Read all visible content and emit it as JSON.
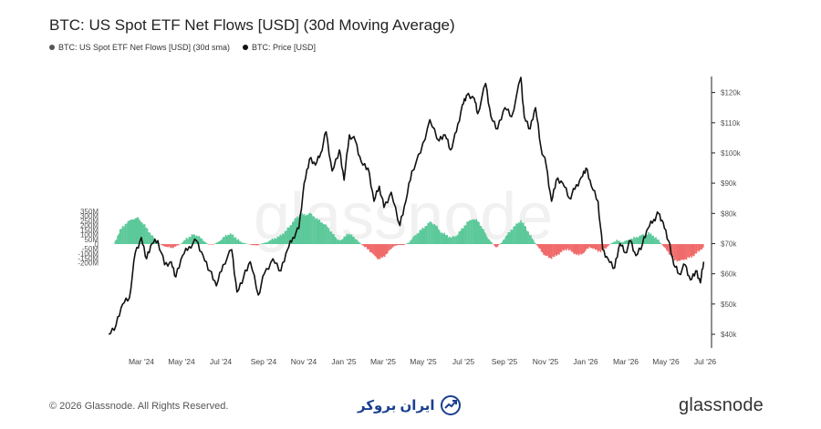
{
  "title": "BTC: US Spot ETF Net Flows [USD] (30d Moving Average)",
  "legend": [
    {
      "label": "BTC: US Spot ETF Net Flows [USD] (30d sma)",
      "color": "#555555"
    },
    {
      "label": "BTC: Price [USD]",
      "color": "#111111"
    }
  ],
  "watermark": "glassnode",
  "footer": {
    "copyright": "© 2026 Glassnode. All Rights Reserved.",
    "partner": "ایران بروکر",
    "brand": "glassnode"
  },
  "colors": {
    "inflow": "#5cc99a",
    "outflow": "#f06b6b",
    "price": "#111111"
  },
  "chart_data": {
    "type": "area",
    "title": "BTC: US Spot ETF Net Flows [USD] (30d Moving Average)",
    "x_ticks": [
      "Mar '24",
      "May '24",
      "Jul '24",
      "Sep '24",
      "Nov '24",
      "Jan '25",
      "Mar '25",
      "May '25",
      "Jul '25",
      "Sep '25",
      "Nov '25",
      "Jan '26",
      "Mar '26",
      "May '26",
      "Jul '26"
    ],
    "left_axis": {
      "ticks": [
        "350M",
        "300M",
        "250M",
        "200M",
        "150M",
        "100M",
        "50M",
        "0",
        "-50M",
        "-100M",
        "-150M",
        "-200M"
      ],
      "range": [
        -200,
        350
      ],
      "unit": "M USD"
    },
    "right_axis": {
      "ticks": [
        "$120k",
        "$110k",
        "$100k",
        "$90k",
        "$80k",
        "$70k",
        "$60k",
        "$50k",
        "$40k"
      ],
      "range": [
        40,
        125
      ],
      "unit": "k USD"
    },
    "series": [
      {
        "name": "BTC: US Spot ETF Net Flows [USD] (30d sma)",
        "axis": "left",
        "unit": "M USD",
        "points": [
          [
            "2024-02-01",
            0
          ],
          [
            "2024-02-10",
            150
          ],
          [
            "2024-02-20",
            230
          ],
          [
            "2024-02-28",
            265
          ],
          [
            "2024-03-08",
            280
          ],
          [
            "2024-03-18",
            200
          ],
          [
            "2024-03-28",
            100
          ],
          [
            "2024-04-05",
            30
          ],
          [
            "2024-04-12",
            -10
          ],
          [
            "2024-04-20",
            -30
          ],
          [
            "2024-04-28",
            -40
          ],
          [
            "2024-05-05",
            -20
          ],
          [
            "2024-05-12",
            5
          ],
          [
            "2024-05-20",
            60
          ],
          [
            "2024-05-30",
            100
          ],
          [
            "2024-06-06",
            90
          ],
          [
            "2024-06-14",
            40
          ],
          [
            "2024-06-22",
            -5
          ],
          [
            "2024-06-30",
            -5
          ],
          [
            "2024-07-08",
            30
          ],
          [
            "2024-07-18",
            90
          ],
          [
            "2024-07-25",
            110
          ],
          [
            "2024-08-02",
            70
          ],
          [
            "2024-08-10",
            20
          ],
          [
            "2024-08-18",
            5
          ],
          [
            "2024-08-26",
            -10
          ],
          [
            "2024-09-03",
            -15
          ],
          [
            "2024-09-10",
            5
          ],
          [
            "2024-09-18",
            20
          ],
          [
            "2024-09-28",
            60
          ],
          [
            "2024-10-06",
            80
          ],
          [
            "2024-10-15",
            130
          ],
          [
            "2024-10-23",
            200
          ],
          [
            "2024-11-01",
            280
          ],
          [
            "2024-11-08",
            320
          ],
          [
            "2024-11-15",
            310
          ],
          [
            "2024-11-22",
            330
          ],
          [
            "2024-11-30",
            280
          ],
          [
            "2024-12-08",
            240
          ],
          [
            "2024-12-16",
            200
          ],
          [
            "2024-12-24",
            130
          ],
          [
            "2024-12-31",
            60
          ],
          [
            "2025-01-08",
            40
          ],
          [
            "2025-01-16",
            110
          ],
          [
            "2025-01-25",
            90
          ],
          [
            "2025-02-02",
            30
          ],
          [
            "2025-02-10",
            -20
          ],
          [
            "2025-02-18",
            -60
          ],
          [
            "2025-02-26",
            -120
          ],
          [
            "2025-03-05",
            -160
          ],
          [
            "2025-03-12",
            -140
          ],
          [
            "2025-03-20",
            -80
          ],
          [
            "2025-03-28",
            -20
          ],
          [
            "2025-04-05",
            -10
          ],
          [
            "2025-04-12",
            -10
          ],
          [
            "2025-04-20",
            20
          ],
          [
            "2025-04-28",
            90
          ],
          [
            "2025-05-06",
            140
          ],
          [
            "2025-05-14",
            190
          ],
          [
            "2025-05-22",
            240
          ],
          [
            "2025-05-30",
            200
          ],
          [
            "2025-06-06",
            130
          ],
          [
            "2025-06-14",
            100
          ],
          [
            "2025-06-22",
            70
          ],
          [
            "2025-06-30",
            90
          ],
          [
            "2025-07-08",
            160
          ],
          [
            "2025-07-16",
            230
          ],
          [
            "2025-07-24",
            270
          ],
          [
            "2025-08-01",
            250
          ],
          [
            "2025-08-08",
            170
          ],
          [
            "2025-08-15",
            80
          ],
          [
            "2025-08-22",
            15
          ],
          [
            "2025-08-29",
            -35
          ],
          [
            "2025-09-05",
            10
          ],
          [
            "2025-09-12",
            80
          ],
          [
            "2025-09-20",
            150
          ],
          [
            "2025-09-28",
            210
          ],
          [
            "2025-10-05",
            250
          ],
          [
            "2025-10-12",
            180
          ],
          [
            "2025-10-20",
            80
          ],
          [
            "2025-10-27",
            5
          ],
          [
            "2025-11-03",
            -60
          ],
          [
            "2025-11-10",
            -120
          ],
          [
            "2025-11-18",
            -150
          ],
          [
            "2025-11-26",
            -130
          ],
          [
            "2025-12-05",
            -80
          ],
          [
            "2025-12-14",
            -50
          ],
          [
            "2025-12-22",
            -90
          ],
          [
            "2025-12-31",
            -120
          ],
          [
            "2026-01-08",
            -90
          ],
          [
            "2026-01-16",
            -30
          ],
          [
            "2026-01-25",
            -60
          ],
          [
            "2026-02-02",
            -80
          ],
          [
            "2026-02-10",
            -40
          ],
          [
            "2026-02-18",
            10
          ],
          [
            "2026-02-26",
            40
          ],
          [
            "2026-03-06",
            20
          ],
          [
            "2026-03-14",
            40
          ],
          [
            "2026-03-22",
            60
          ],
          [
            "2026-03-30",
            80
          ],
          [
            "2026-04-07",
            100
          ],
          [
            "2026-04-15",
            115
          ],
          [
            "2026-04-22",
            90
          ],
          [
            "2026-04-30",
            40
          ],
          [
            "2026-05-08",
            -30
          ],
          [
            "2026-05-16",
            -100
          ],
          [
            "2026-05-24",
            -170
          ],
          [
            "2026-06-01",
            -180
          ],
          [
            "2026-06-09",
            -160
          ],
          [
            "2026-06-17",
            -140
          ],
          [
            "2026-06-24",
            -110
          ],
          [
            "2026-07-02",
            -60
          ],
          [
            "2026-07-08",
            -30
          ]
        ]
      },
      {
        "name": "BTC: Price [USD]",
        "axis": "right",
        "unit": "k USD",
        "points": [
          [
            "2024-01-25",
            40
          ],
          [
            "2024-02-05",
            43
          ],
          [
            "2024-02-15",
            50
          ],
          [
            "2024-02-25",
            52
          ],
          [
            "2024-03-05",
            67
          ],
          [
            "2024-03-14",
            72
          ],
          [
            "2024-03-22",
            65
          ],
          [
            "2024-03-30",
            70
          ],
          [
            "2024-04-08",
            71
          ],
          [
            "2024-04-18",
            63
          ],
          [
            "2024-04-28",
            64
          ],
          [
            "2024-05-05",
            59
          ],
          [
            "2024-05-15",
            66
          ],
          [
            "2024-05-25",
            69
          ],
          [
            "2024-06-05",
            71
          ],
          [
            "2024-06-15",
            66
          ],
          [
            "2024-06-25",
            61
          ],
          [
            "2024-07-05",
            56
          ],
          [
            "2024-07-15",
            63
          ],
          [
            "2024-07-28",
            68
          ],
          [
            "2024-08-05",
            54
          ],
          [
            "2024-08-15",
            59
          ],
          [
            "2024-08-25",
            64
          ],
          [
            "2024-09-06",
            53
          ],
          [
            "2024-09-15",
            60
          ],
          [
            "2024-09-28",
            65
          ],
          [
            "2024-10-10",
            61
          ],
          [
            "2024-10-20",
            68
          ],
          [
            "2024-10-28",
            72
          ],
          [
            "2024-11-06",
            75
          ],
          [
            "2024-11-14",
            90
          ],
          [
            "2024-11-22",
            98
          ],
          [
            "2024-12-01",
            96
          ],
          [
            "2024-12-09",
            100
          ],
          [
            "2024-12-17",
            107
          ],
          [
            "2024-12-26",
            94
          ],
          [
            "2025-01-06",
            101
          ],
          [
            "2025-01-13",
            91
          ],
          [
            "2025-01-21",
            106
          ],
          [
            "2025-01-30",
            104
          ],
          [
            "2025-02-08",
            97
          ],
          [
            "2025-02-18",
            95
          ],
          [
            "2025-02-27",
            84
          ],
          [
            "2025-03-07",
            89
          ],
          [
            "2025-03-14",
            82
          ],
          [
            "2025-03-25",
            87
          ],
          [
            "2025-04-07",
            76
          ],
          [
            "2025-04-16",
            84
          ],
          [
            "2025-04-25",
            94
          ],
          [
            "2025-05-08",
            100
          ],
          [
            "2025-05-22",
            111
          ],
          [
            "2025-06-05",
            104
          ],
          [
            "2025-06-14",
            106
          ],
          [
            "2025-06-22",
            101
          ],
          [
            "2025-07-01",
            107
          ],
          [
            "2025-07-10",
            116
          ],
          [
            "2025-07-16",
            119
          ],
          [
            "2025-07-28",
            118
          ],
          [
            "2025-08-02",
            113
          ],
          [
            "2025-08-14",
            123
          ],
          [
            "2025-08-22",
            112
          ],
          [
            "2025-09-01",
            108
          ],
          [
            "2025-09-12",
            115
          ],
          [
            "2025-09-22",
            112
          ],
          [
            "2025-10-06",
            125
          ],
          [
            "2025-10-11",
            112
          ],
          [
            "2025-10-20",
            108
          ],
          [
            "2025-10-28",
            115
          ],
          [
            "2025-11-05",
            102
          ],
          [
            "2025-11-13",
            96
          ],
          [
            "2025-11-21",
            84
          ],
          [
            "2025-11-28",
            91
          ],
          [
            "2025-12-08",
            90
          ],
          [
            "2025-12-18",
            85
          ],
          [
            "2025-12-26",
            88
          ],
          [
            "2026-01-05",
            92
          ],
          [
            "2026-01-12",
            95
          ],
          [
            "2026-01-20",
            89
          ],
          [
            "2026-01-30",
            84
          ],
          [
            "2026-02-06",
            68
          ],
          [
            "2026-02-14",
            65
          ],
          [
            "2026-02-24",
            62
          ],
          [
            "2026-03-04",
            70
          ],
          [
            "2026-03-12",
            67
          ],
          [
            "2026-03-20",
            71
          ],
          [
            "2026-03-28",
            66
          ],
          [
            "2026-04-07",
            70
          ],
          [
            "2026-04-15",
            75
          ],
          [
            "2026-04-24",
            78
          ],
          [
            "2026-05-01",
            80
          ],
          [
            "2026-05-08",
            77
          ],
          [
            "2026-05-16",
            71
          ],
          [
            "2026-05-24",
            63
          ],
          [
            "2026-06-01",
            60
          ],
          [
            "2026-06-10",
            63
          ],
          [
            "2026-06-18",
            58
          ],
          [
            "2026-06-26",
            61
          ],
          [
            "2026-07-03",
            57
          ],
          [
            "2026-07-08",
            64
          ]
        ]
      }
    ],
    "legend_position": "top-left",
    "grid": false
  }
}
